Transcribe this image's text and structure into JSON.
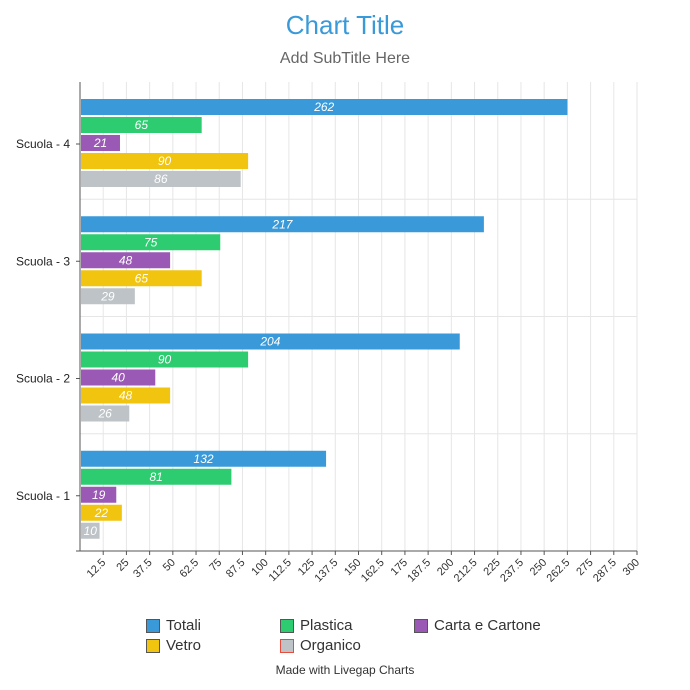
{
  "chart_data": {
    "type": "bar",
    "orientation": "horizontal",
    "title": "Chart Title",
    "subtitle": "Add SubTitle Here",
    "categories": [
      "Scuola - 4",
      "Scuola - 3",
      "Scuola - 2",
      "Scuola - 1"
    ],
    "series": [
      {
        "name": "Totali",
        "color": "#3a9ad9",
        "values": [
          262,
          217,
          204,
          132
        ]
      },
      {
        "name": "Plastica",
        "color": "#2ecc71",
        "values": [
          65,
          75,
          90,
          81
        ]
      },
      {
        "name": "Carta e Cartone",
        "color": "#9b59b6",
        "values": [
          21,
          48,
          40,
          19
        ]
      },
      {
        "name": "Vetro",
        "color": "#f1c40f",
        "values": [
          90,
          65,
          48,
          22
        ]
      },
      {
        "name": "Organico",
        "color": "#bdc3c7",
        "values": [
          86,
          29,
          26,
          10
        ]
      }
    ],
    "xticks": [
      "12.5",
      "25",
      "37.5",
      "50",
      "62.5",
      "75",
      "87.5",
      "100",
      "112.5",
      "125",
      "137.5",
      "150",
      "162.5",
      "175",
      "187.5",
      "200",
      "212.5",
      "225",
      "237.5",
      "250",
      "262.5",
      "275",
      "287.5",
      "300"
    ],
    "xlim": [
      0,
      300
    ],
    "grid": true,
    "legend_position": "bottom",
    "data_labels": true
  },
  "footer": "Made with Livegap Charts"
}
